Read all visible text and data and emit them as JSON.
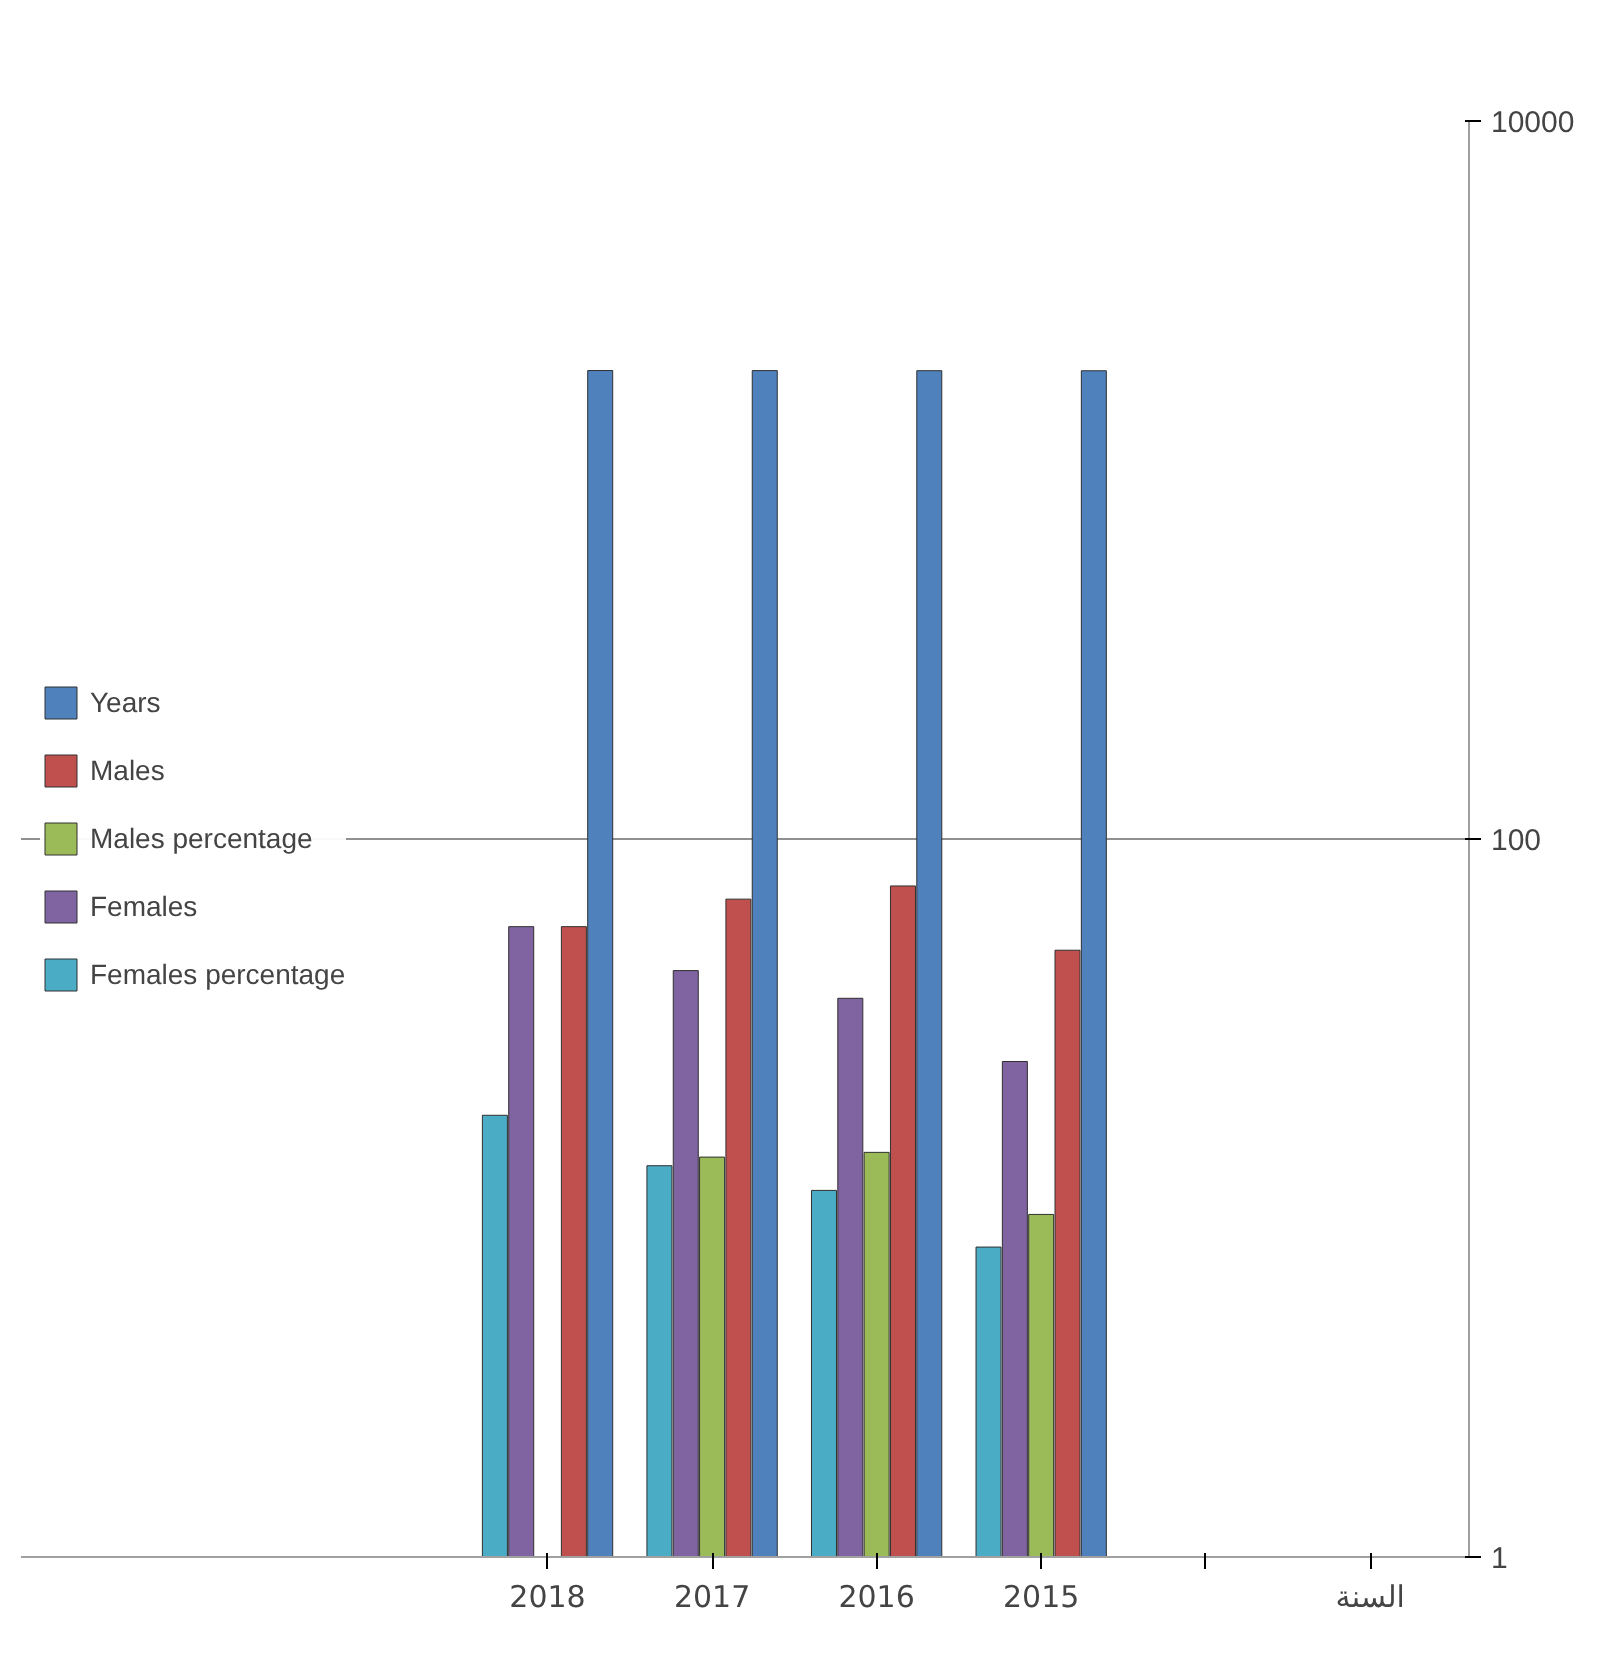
{
  "chart_data": {
    "type": "bar",
    "log": true,
    "categories": [
      "2018",
      "2017",
      "2016",
      "2015",
      null,
      "السنة"
    ],
    "series": [
      {
        "name": "Years",
        "color": "#4f81bd",
        "values": [
          2018,
          2017,
          2016,
          2015,
          null,
          null
        ]
      },
      {
        "name": "Males",
        "color": "#c0504d",
        "values": [
          57,
          68,
          74,
          49,
          null,
          null
        ]
      },
      {
        "name": "Males percentage",
        "color": "#9bbb59",
        "values": [
          null,
          13,
          13.4,
          9,
          null,
          null
        ]
      },
      {
        "name": "Females",
        "color": "#8064a2",
        "values": [
          57,
          43,
          36,
          24,
          null,
          null
        ]
      },
      {
        "name": "Females percentage",
        "color": "#4bacc6",
        "values": [
          17,
          12.3,
          10.5,
          7.3,
          null,
          null
        ]
      }
    ],
    "ylim": [
      1,
      10000
    ],
    "yticks": [
      1,
      100,
      10000
    ],
    "grid": "y",
    "legend": "left"
  }
}
